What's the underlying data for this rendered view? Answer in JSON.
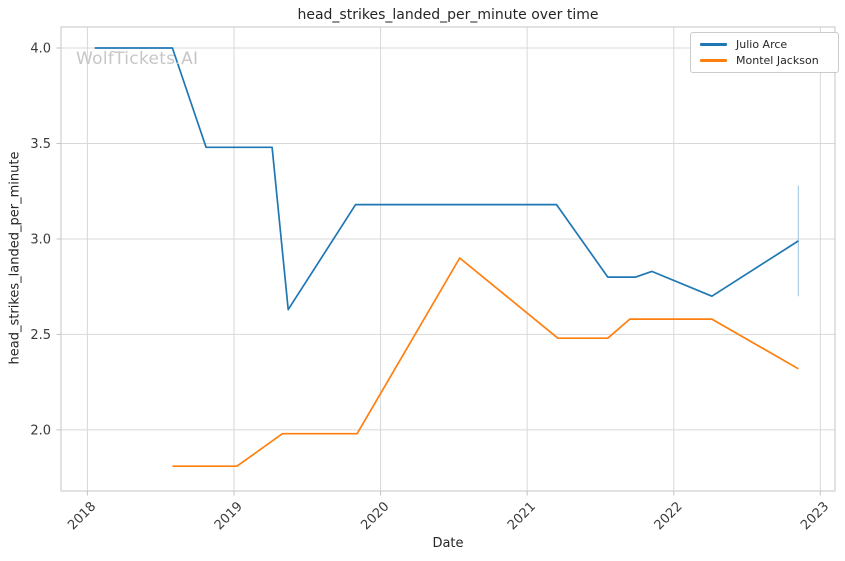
{
  "figure": {
    "watermark": "WolfTickets.AI"
  },
  "colors": {
    "background": "#ffffff",
    "grid": "#d8d8d8",
    "frame": "#c6c6c6",
    "tick_mark": "#c2c2c2",
    "tick_text": "#3b3b3b",
    "label_text": "#262626",
    "watermark": "#c6c6c6",
    "error_bar": "#aed1e8"
  },
  "chart_data": {
    "type": "line",
    "title": "head_strikes_landed_per_minute over time",
    "xlabel": "Date",
    "ylabel": "head_strikes_landed_per_minute",
    "x_unit": "decimal_year",
    "xlim": [
      2017.82,
      2023.1
    ],
    "ylim": [
      1.68,
      4.11
    ],
    "grid": true,
    "legend_position": "upper-right",
    "xticks": [
      {
        "value": 2018,
        "label": "2018"
      },
      {
        "value": 2019,
        "label": "2019"
      },
      {
        "value": 2020,
        "label": "2020"
      },
      {
        "value": 2021,
        "label": "2021"
      },
      {
        "value": 2022,
        "label": "2022"
      },
      {
        "value": 2023,
        "label": "2023"
      }
    ],
    "yticks": [
      {
        "value": 2.0,
        "label": "2.0"
      },
      {
        "value": 2.5,
        "label": "2.5"
      },
      {
        "value": 3.0,
        "label": "3.0"
      },
      {
        "value": 3.5,
        "label": "3.5"
      },
      {
        "value": 4.0,
        "label": "4.0"
      }
    ],
    "series": [
      {
        "name": "Julio Arce",
        "color": "#1f77b4",
        "points": [
          [
            2018.05,
            4.0
          ],
          [
            2018.58,
            4.0
          ],
          [
            2018.81,
            3.48
          ],
          [
            2019.26,
            3.48
          ],
          [
            2019.37,
            2.63
          ],
          [
            2019.83,
            3.18
          ],
          [
            2021.2,
            3.18
          ],
          [
            2021.55,
            2.8
          ],
          [
            2021.74,
            2.8
          ],
          [
            2021.85,
            2.83
          ],
          [
            2022.26,
            2.7
          ],
          [
            2022.85,
            2.99
          ]
        ]
      },
      {
        "name": "Montel Jackson",
        "color": "#ff7f0e",
        "points": [
          [
            2018.58,
            1.81
          ],
          [
            2019.02,
            1.81
          ],
          [
            2019.33,
            1.98
          ],
          [
            2019.84,
            1.98
          ],
          [
            2020.54,
            2.9
          ],
          [
            2021.21,
            2.48
          ],
          [
            2021.55,
            2.48
          ],
          [
            2021.7,
            2.58
          ],
          [
            2022.26,
            2.58
          ],
          [
            2022.85,
            2.32
          ]
        ]
      }
    ],
    "error_bar": {
      "series": "Julio Arce",
      "x": 2022.85,
      "y_low": 2.7,
      "y_high": 3.28
    }
  }
}
